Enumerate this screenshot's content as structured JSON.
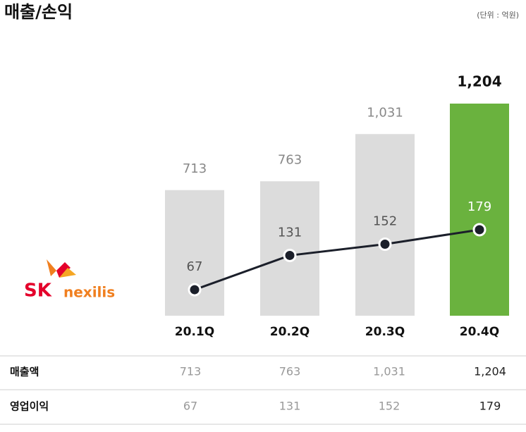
{
  "chart_data": {
    "type": "bar-line",
    "title": "매출/손익",
    "unit_note": "(단위 : 억원)",
    "logo": {
      "brand": "SK",
      "name": "nexilis"
    },
    "categories": [
      "20.1Q",
      "20.2Q",
      "20.3Q",
      "20.4Q"
    ],
    "series": [
      {
        "name": "매출액",
        "type": "bar",
        "colors": [
          "#dcdcdc",
          "#dcdcdc",
          "#dcdcdc",
          "#6ab23e"
        ],
        "values": [
          713,
          763,
          1031,
          1204
        ],
        "value_labels": [
          "713",
          "763",
          "1,031",
          "1,204"
        ]
      },
      {
        "name": "영업이익",
        "type": "line",
        "color": "#1b1f2a",
        "values": [
          67,
          131,
          152,
          179
        ]
      }
    ]
  }
}
